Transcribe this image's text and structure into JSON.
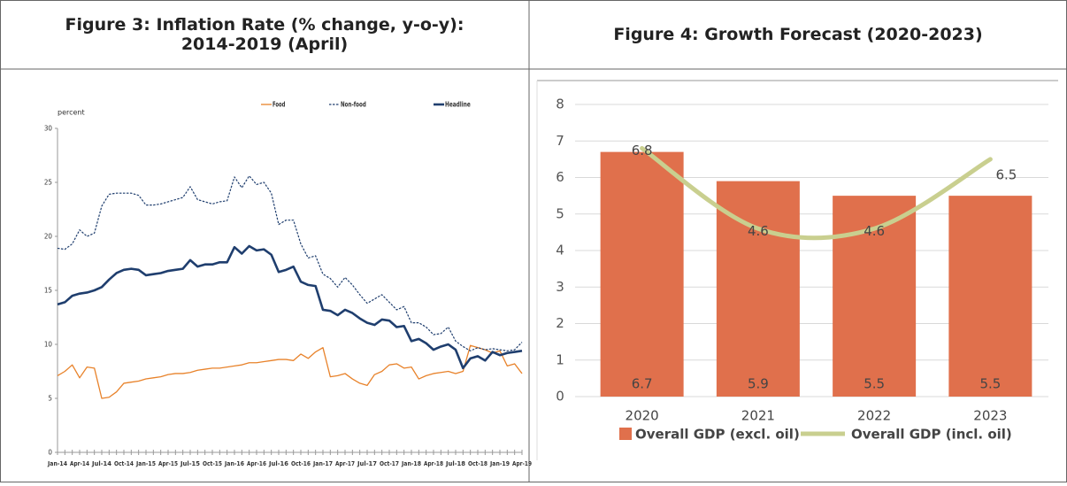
{
  "chart_data": [
    {
      "type": "line",
      "title": "Figure 3:  Inflation Rate (% change, y-o-y): 2014-2019 (April)",
      "y_label": "percent",
      "categories": [
        "Jan-14",
        null,
        null,
        "Apr-14",
        null,
        null,
        "Jul-14",
        null,
        null,
        "Oct-14",
        null,
        null,
        "Jan-15",
        null,
        null,
        "Apr-15",
        null,
        null,
        "Jul-15",
        null,
        null,
        "Oct-15",
        null,
        null,
        "Jan-16",
        null,
        null,
        "Apr-16",
        null,
        null,
        "Jul-16",
        null,
        null,
        "Oct-16",
        null,
        null,
        "Jan-17",
        null,
        null,
        "Apr-17",
        null,
        null,
        "Jul-17",
        null,
        null,
        "Oct-17",
        null,
        null,
        "Jan-18",
        null,
        null,
        "Apr-18",
        null,
        null,
        "Jul-18",
        null,
        null,
        "Oct-18",
        null,
        null,
        "Jan-19",
        null,
        null,
        "Apr-19"
      ],
      "series": [
        {
          "name": "Food",
          "color": "#e8822a",
          "style": "solid",
          "width": 1.3,
          "values": [
            7.1,
            7.5,
            8.1,
            6.9,
            7.9,
            7.8,
            5.0,
            5.1,
            5.6,
            6.4,
            6.5,
            6.6,
            6.8,
            6.9,
            7.0,
            7.2,
            7.3,
            7.3,
            7.4,
            7.6,
            7.7,
            7.8,
            7.8,
            7.9,
            8.0,
            8.1,
            8.3,
            8.3,
            8.4,
            8.5,
            8.6,
            8.6,
            8.5,
            9.1,
            8.7,
            9.3,
            9.7,
            7.0,
            7.1,
            7.3,
            6.8,
            6.4,
            6.2,
            7.2,
            7.5,
            8.1,
            8.2,
            7.8,
            7.9,
            6.8,
            7.1,
            7.3,
            7.4,
            7.5,
            7.3,
            7.5,
            9.9,
            9.7,
            9.5,
            9.2,
            9.4,
            8.0,
            8.2,
            7.3
          ]
        },
        {
          "name": "Non-food",
          "color": "#1f3e6e",
          "style": "dashed",
          "width": 1.2,
          "values": [
            18.9,
            18.8,
            19.3,
            20.6,
            20.0,
            20.3,
            22.8,
            23.9,
            24.0,
            24.0,
            24.0,
            23.8,
            22.9,
            22.9,
            23.0,
            23.2,
            23.4,
            23.6,
            24.6,
            23.4,
            23.2,
            23.0,
            23.2,
            23.3,
            25.5,
            24.5,
            25.6,
            24.8,
            25.0,
            24.0,
            21.1,
            21.5,
            21.5,
            19.3,
            18.0,
            18.2,
            16.5,
            16.1,
            15.3,
            16.2,
            15.5,
            14.6,
            13.8,
            14.2,
            14.6,
            13.9,
            13.2,
            13.5,
            12.0,
            12.0,
            11.6,
            10.9,
            11.0,
            11.6,
            10.3,
            9.8,
            9.4,
            9.7,
            9.5,
            9.6,
            9.5,
            9.4,
            9.5,
            10.2
          ]
        },
        {
          "name": "Headline",
          "color": "#1f3e6e",
          "style": "solid",
          "width": 2.6,
          "values": [
            13.7,
            13.9,
            14.5,
            14.7,
            14.8,
            15.0,
            15.3,
            16.0,
            16.6,
            16.9,
            17.0,
            16.9,
            16.4,
            16.5,
            16.6,
            16.8,
            16.9,
            17.0,
            17.8,
            17.2,
            17.4,
            17.4,
            17.6,
            17.6,
            19.0,
            18.4,
            19.1,
            18.7,
            18.8,
            18.3,
            16.7,
            16.9,
            17.2,
            15.8,
            15.5,
            15.4,
            13.2,
            13.1,
            12.7,
            13.2,
            12.9,
            12.4,
            12.0,
            11.8,
            12.3,
            12.2,
            11.6,
            11.7,
            10.3,
            10.5,
            10.1,
            9.5,
            9.8,
            10.0,
            9.5,
            7.8,
            8.7,
            8.9,
            8.5,
            9.3,
            9.0,
            9.2,
            9.3,
            9.4
          ]
        }
      ],
      "ylim": [
        0,
        30
      ],
      "yticks": [
        0,
        5,
        10,
        15,
        20,
        25,
        30
      ],
      "grid": false,
      "legend": "top"
    },
    {
      "type": "bar",
      "title": "Figure 4:  Growth Forecast (2020-2023)",
      "categories": [
        "2020",
        "2021",
        "2022",
        "2023"
      ],
      "series": [
        {
          "name": "Overall GDP (excl. oil)",
          "type": "bar",
          "color": "#e0704c",
          "values": [
            6.7,
            5.9,
            5.5,
            5.5
          ]
        },
        {
          "name": "Overall GDP (incl. oil)",
          "type": "line",
          "color": "#c9cf8f",
          "values": [
            6.8,
            4.6,
            4.6,
            6.5
          ]
        }
      ],
      "ylim": [
        0,
        8
      ],
      "yticks": [
        0,
        1,
        2,
        3,
        4,
        5,
        6,
        7,
        8
      ],
      "grid": true,
      "legend": "bottom"
    }
  ]
}
